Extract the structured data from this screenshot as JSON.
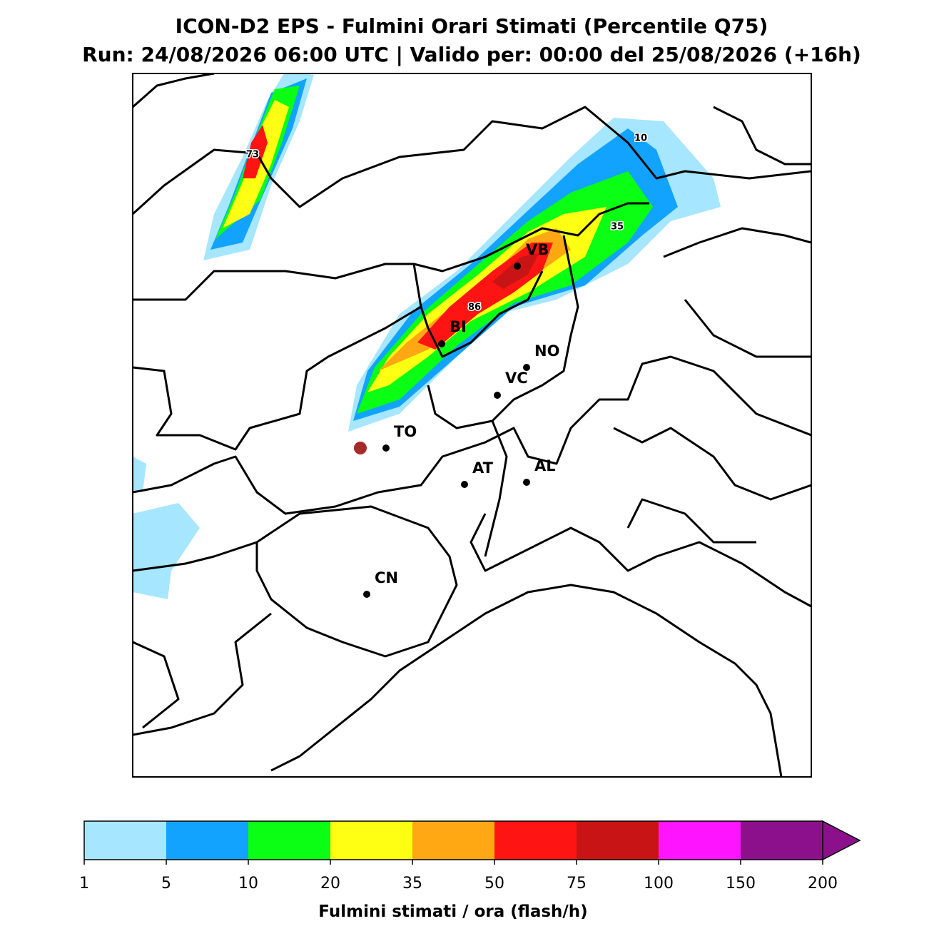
{
  "header": {
    "title": "ICON-D2 EPS - Fulmini Orari Stimati (Percentile Q75)",
    "subtitle": "Run: 24/08/2026 06:00 UTC | Valido per: 00:00 del 25/08/2026 (+16h)"
  },
  "map": {
    "cities": [
      "VB",
      "BI",
      "NO",
      "VC",
      "TO",
      "AT",
      "AL",
      "CN"
    ],
    "peak_labels": [
      73,
      86,
      35,
      10
    ]
  },
  "colorbar": {
    "label": "Fulmini stimati / ora (flash/h)",
    "ticks": [
      1,
      5,
      10,
      20,
      35,
      50,
      75,
      100,
      150,
      200
    ],
    "colors": [
      "#a6e6ff",
      "#12a3ff",
      "#0aff14",
      "#ffff14",
      "#ffa814",
      "#ff1414",
      "#c81414",
      "#ff14ff",
      "#8c108c"
    ]
  }
}
